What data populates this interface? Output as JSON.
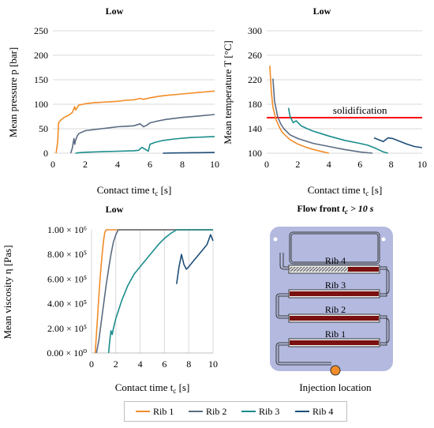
{
  "legend": {
    "position": "bottom",
    "items": [
      {
        "label": "Rib 1",
        "color": "#f28c28"
      },
      {
        "label": "Rib 2",
        "color": "#5b6b82"
      },
      {
        "label": "Rib 3",
        "color": "#1b8c8c"
      },
      {
        "label": "Rib 4",
        "color": "#1f4e79"
      }
    ]
  },
  "chart_data": [
    {
      "type": "line",
      "title": "Low",
      "xlabel": "Contact time t_c [s]",
      "ylabel": "Mean pressure p [bar]",
      "xlim": [
        0,
        10
      ],
      "ylim": [
        0,
        250
      ],
      "xticks": [
        "0",
        "2",
        "4",
        "6",
        "8",
        "10"
      ],
      "yticks": [
        "0",
        "50",
        "100",
        "150",
        "200",
        "250"
      ],
      "grid": "horizontal",
      "series": [
        {
          "name": "Rib 1",
          "points": [
            [
              0.2,
              0
            ],
            [
              0.3,
              25
            ],
            [
              0.35,
              62
            ],
            [
              0.5,
              68
            ],
            [
              0.7,
              73
            ],
            [
              1.0,
              78
            ],
            [
              1.2,
              83
            ],
            [
              1.35,
              95
            ],
            [
              1.4,
              88
            ],
            [
              1.5,
              93
            ],
            [
              1.6,
              98
            ],
            [
              2.0,
              101
            ],
            [
              2.5,
              103
            ],
            [
              3.0,
              104
            ],
            [
              3.5,
              105
            ],
            [
              4.0,
              106
            ],
            [
              4.5,
              108
            ],
            [
              5.0,
              109
            ],
            [
              5.4,
              112
            ],
            [
              5.6,
              110
            ],
            [
              6.0,
              113
            ],
            [
              6.5,
              116
            ],
            [
              7.0,
              118
            ],
            [
              8.0,
              121
            ],
            [
              9.0,
              124
            ],
            [
              10.0,
              127
            ]
          ]
        },
        {
          "name": "Rib 2",
          "points": [
            [
              1.1,
              0
            ],
            [
              1.2,
              10
            ],
            [
              1.3,
              30
            ],
            [
              1.35,
              18
            ],
            [
              1.4,
              26
            ],
            [
              1.5,
              35
            ],
            [
              1.6,
              40
            ],
            [
              1.8,
              43
            ],
            [
              2.0,
              46
            ],
            [
              2.5,
              48
            ],
            [
              3.0,
              50
            ],
            [
              3.5,
              52
            ],
            [
              4.0,
              54
            ],
            [
              4.5,
              55
            ],
            [
              5.0,
              56
            ],
            [
              5.4,
              60
            ],
            [
              5.6,
              54
            ],
            [
              5.8,
              57
            ],
            [
              6.0,
              62
            ],
            [
              6.5,
              66
            ],
            [
              7.0,
              69
            ],
            [
              8.0,
              73
            ],
            [
              9.0,
              76
            ],
            [
              10.0,
              79
            ]
          ]
        },
        {
          "name": "Rib 3",
          "points": [
            [
              1.4,
              0
            ],
            [
              1.6,
              1
            ],
            [
              2.0,
              2
            ],
            [
              3.0,
              3
            ],
            [
              4.0,
              4
            ],
            [
              5.0,
              5
            ],
            [
              5.3,
              6
            ],
            [
              5.5,
              12
            ],
            [
              5.7,
              8
            ],
            [
              5.9,
              4
            ],
            [
              6.0,
              18
            ],
            [
              6.3,
              22
            ],
            [
              6.8,
              26
            ],
            [
              7.5,
              29
            ],
            [
              8.5,
              32
            ],
            [
              10.0,
              34
            ]
          ]
        },
        {
          "name": "Rib 4",
          "points": [
            [
              6.8,
              0
            ],
            [
              7.5,
              0.5
            ],
            [
              8.5,
              1
            ],
            [
              10.0,
              1.5
            ]
          ]
        }
      ]
    },
    {
      "type": "line",
      "title": "Low",
      "xlabel": "Contact time t_c [s]",
      "ylabel": "Mean temperature T [°C]",
      "xlim": [
        0,
        10
      ],
      "ylim": [
        100,
        300
      ],
      "xticks": [
        "0",
        "2",
        "4",
        "6",
        "8",
        "10"
      ],
      "yticks": [
        "100",
        "140",
        "180",
        "220",
        "260",
        "300"
      ],
      "grid": "horizontal",
      "annotations": [
        {
          "text": "solidification",
          "y": 158,
          "color": "#ff0000"
        }
      ],
      "series": [
        {
          "name": "Rib 1",
          "points": [
            [
              0.2,
              243
            ],
            [
              0.3,
              200
            ],
            [
              0.4,
              175
            ],
            [
              0.6,
              155
            ],
            [
              0.8,
              143
            ],
            [
              1.0,
              134
            ],
            [
              1.5,
              122
            ],
            [
              2.0,
              115
            ],
            [
              2.5,
              110
            ],
            [
              3.0,
              106
            ],
            [
              3.5,
              103
            ],
            [
              4.0,
              100
            ]
          ]
        },
        {
          "name": "Rib 2",
          "points": [
            [
              0.4,
              222
            ],
            [
              0.5,
              185
            ],
            [
              0.7,
              160
            ],
            [
              0.9,
              148
            ],
            [
              1.1,
              140
            ],
            [
              1.5,
              130
            ],
            [
              2.0,
              124
            ],
            [
              3.0,
              116
            ],
            [
              4.0,
              111
            ],
            [
              5.0,
              106
            ],
            [
              6.0,
              102
            ],
            [
              6.8,
              100
            ]
          ]
        },
        {
          "name": "Rib 3",
          "points": [
            [
              1.4,
              174
            ],
            [
              1.5,
              160
            ],
            [
              1.7,
              150
            ],
            [
              1.9,
              153
            ],
            [
              2.2,
              145
            ],
            [
              2.6,
              140
            ],
            [
              3.0,
              136
            ],
            [
              3.5,
              132
            ],
            [
              4.0,
              128
            ],
            [
              5.0,
              121
            ],
            [
              6.0,
              116
            ],
            [
              6.5,
              113
            ],
            [
              7.0,
              108
            ],
            [
              7.5,
              102
            ],
            [
              7.8,
              100
            ]
          ]
        },
        {
          "name": "Rib 4",
          "points": [
            [
              6.9,
              125
            ],
            [
              7.2,
              122
            ],
            [
              7.5,
              119
            ],
            [
              7.8,
              125
            ],
            [
              8.1,
              124
            ],
            [
              8.5,
              120
            ],
            [
              9.0,
              115
            ],
            [
              9.5,
              111
            ],
            [
              10.0,
              109
            ]
          ]
        }
      ]
    },
    {
      "type": "line",
      "title": "Low",
      "xlabel": "Contact time t_c [s]",
      "ylabel": "Mean viscosity η [Pas]",
      "xlim": [
        0,
        10
      ],
      "ylim": [
        0,
        1000000
      ],
      "xticks": [
        "0",
        "2",
        "4",
        "6",
        "8",
        "10"
      ],
      "yticks": [
        "0.00 × 10⁰",
        "2.00 × 10⁵",
        "4.00 × 10⁵",
        "6.00 × 10⁵",
        "8.00 × 10⁵",
        "1.00 × 10⁶"
      ],
      "grid": "vertical",
      "series": [
        {
          "name": "Rib 1",
          "points": [
            [
              0.3,
              0
            ],
            [
              0.4,
              150000
            ],
            [
              0.5,
              300000
            ],
            [
              0.6,
              450000
            ],
            [
              0.7,
              600000
            ],
            [
              0.8,
              720000
            ],
            [
              0.9,
              830000
            ],
            [
              1.0,
              920000
            ],
            [
              1.1,
              980000
            ],
            [
              1.2,
              1000000
            ],
            [
              10.0,
              1000000
            ]
          ]
        },
        {
          "name": "Rib 2",
          "points": [
            [
              0.4,
              0
            ],
            [
              0.6,
              100000
            ],
            [
              0.8,
              250000
            ],
            [
              1.0,
              400000
            ],
            [
              1.2,
              550000
            ],
            [
              1.4,
              680000
            ],
            [
              1.6,
              800000
            ],
            [
              1.8,
              900000
            ],
            [
              2.0,
              960000
            ],
            [
              2.2,
              1000000
            ],
            [
              10.0,
              1000000
            ]
          ]
        },
        {
          "name": "Rib 3",
          "points": [
            [
              1.4,
              0
            ],
            [
              1.5,
              100000
            ],
            [
              1.6,
              180000
            ],
            [
              1.7,
              150000
            ],
            [
              1.8,
              200000
            ],
            [
              2.0,
              280000
            ],
            [
              2.5,
              430000
            ],
            [
              3.0,
              550000
            ],
            [
              3.5,
              640000
            ],
            [
              4.0,
              700000
            ],
            [
              4.5,
              760000
            ],
            [
              5.0,
              820000
            ],
            [
              5.5,
              880000
            ],
            [
              6.0,
              930000
            ],
            [
              6.5,
              970000
            ],
            [
              7.0,
              1000000
            ],
            [
              10.0,
              1000000
            ]
          ]
        },
        {
          "name": "Rib 4",
          "points": [
            [
              7.0,
              560000
            ],
            [
              7.2,
              700000
            ],
            [
              7.4,
              800000
            ],
            [
              7.6,
              720000
            ],
            [
              7.8,
              680000
            ],
            [
              8.0,
              700000
            ],
            [
              8.5,
              760000
            ],
            [
              9.0,
              820000
            ],
            [
              9.5,
              880000
            ],
            [
              9.8,
              960000
            ],
            [
              10.0,
              910000
            ]
          ]
        }
      ]
    }
  ],
  "panels": {
    "p1": {
      "title": "Low",
      "ylabel": "Mean pressure p [bar]",
      "xlabel": "Contact time t",
      "xlabel_sub": "c",
      "xlabel_unit": " [s]"
    },
    "p2": {
      "title": "Low",
      "ylabel": "Mean temperature T [°C]",
      "xlabel": "Contact time t",
      "xlabel_sub": "c",
      "xlabel_unit": " [s]",
      "annotation": "solidification"
    },
    "p3": {
      "title": "Low",
      "ylabel": "Mean viscosity η [Pas]",
      "xlabel": "Contact time t",
      "xlabel_sub": "c",
      "xlabel_unit": " [s]"
    }
  },
  "schematic": {
    "title_pre": "Flow front ",
    "title_math_t": "t",
    "title_math_sub": "c",
    "title_math_rest": " > 10 s",
    "ribs": [
      "Rib 4",
      "Rib 3",
      "Rib 2",
      "Rib 1"
    ],
    "caption": "Injection location",
    "colors": {
      "plate": "#b3b9df",
      "fill": "#7a1010",
      "stroke": "#3a3a3a"
    }
  }
}
